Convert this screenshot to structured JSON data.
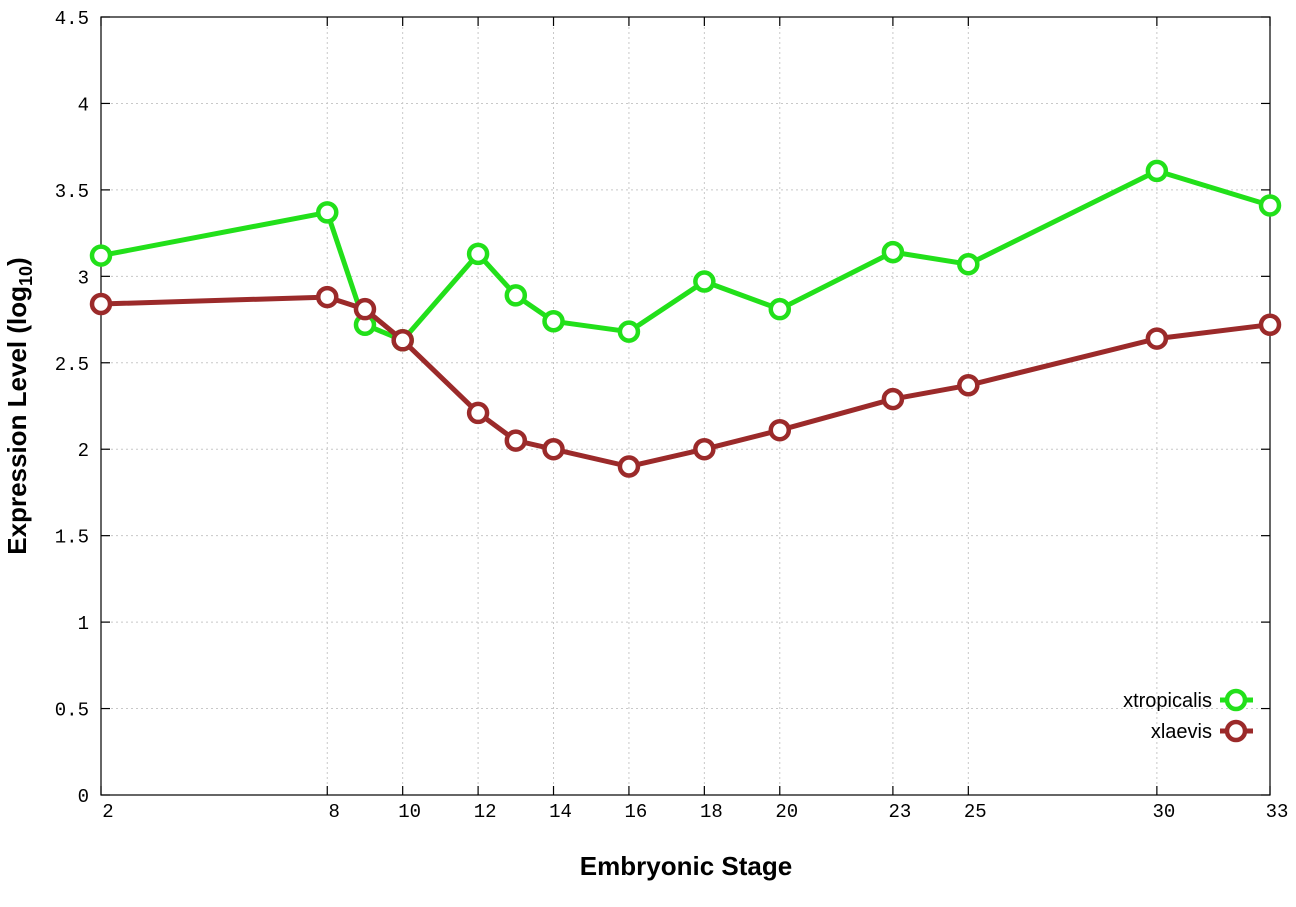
{
  "chart_data": {
    "type": "line",
    "xlabel": "Embryonic Stage",
    "ylabel_main": "Expression Level (log",
    "ylabel_sub": "10",
    "ylabel_end": ")",
    "xlim": [
      2,
      33
    ],
    "ylim": [
      0,
      4.5
    ],
    "x_ticks": [
      2,
      8,
      10,
      12,
      14,
      16,
      18,
      20,
      23,
      25,
      30,
      33
    ],
    "y_ticks": [
      0,
      0.5,
      1,
      1.5,
      2,
      2.5,
      3,
      3.5,
      4,
      4.5
    ],
    "y_tick_labels": [
      "0",
      "0.5",
      "1",
      "1.5",
      "2",
      "2.5",
      "3",
      "3.5",
      "4",
      "4.5"
    ],
    "x": [
      2,
      8,
      9,
      10,
      12,
      13,
      14,
      16,
      18,
      20,
      23,
      25,
      30,
      33
    ],
    "grid": true,
    "legend_position": "bottom-right",
    "series": [
      {
        "name": "xtropicalis",
        "color": "#22e01a",
        "values": [
          3.12,
          3.37,
          2.72,
          2.63,
          3.13,
          2.89,
          2.74,
          2.68,
          2.97,
          2.81,
          3.14,
          3.07,
          3.61,
          3.41
        ]
      },
      {
        "name": "xlaevis",
        "color": "#9b2a2a",
        "values": [
          2.84,
          2.88,
          2.81,
          2.63,
          2.21,
          2.05,
          2.0,
          1.9,
          2.0,
          2.11,
          2.29,
          2.37,
          2.64,
          2.72
        ]
      }
    ]
  }
}
